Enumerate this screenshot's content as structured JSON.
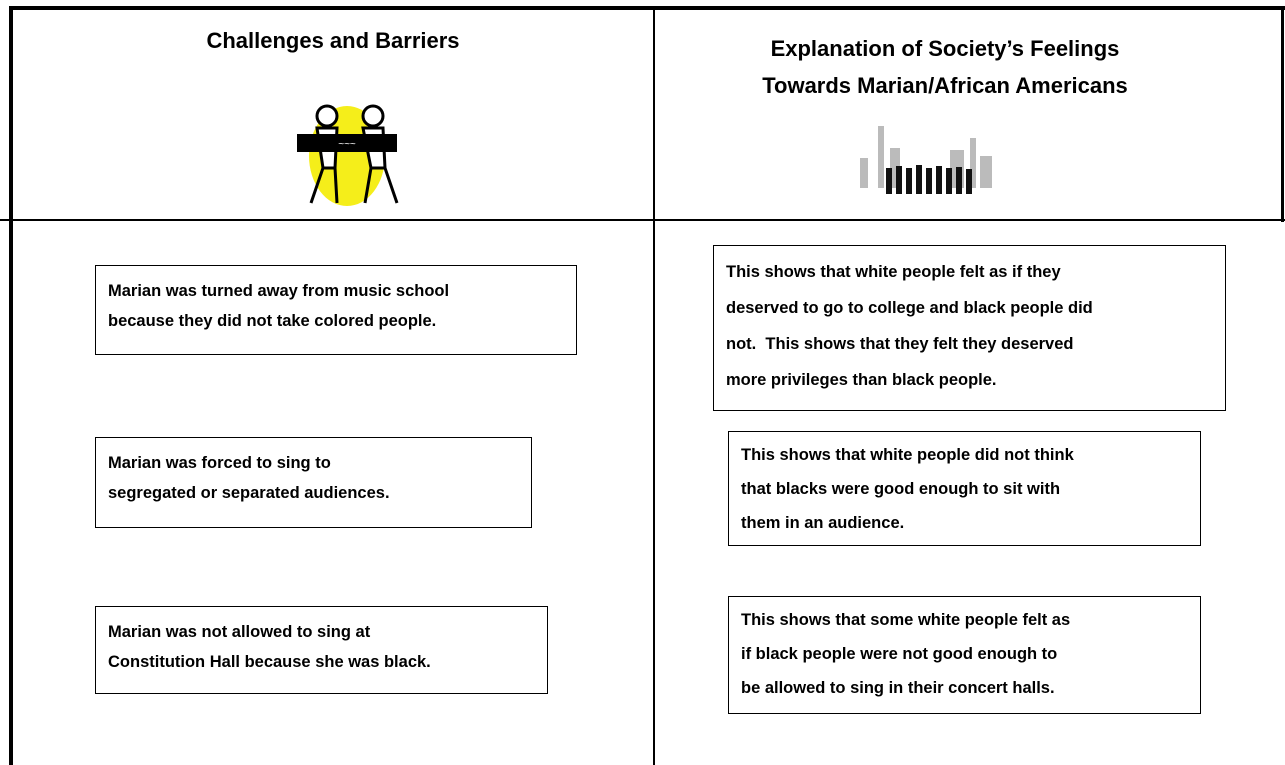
{
  "header": {
    "left_title": "Challenges and Barriers",
    "right_title": [
      "Explanation of Society’s Feelings",
      "Towards Marian/African Americans"
    ]
  },
  "challenges": [
    [
      "Marian was turned away from music school",
      "because they did not take colored people."
    ],
    [
      "Marian was forced to sing to",
      "segregated or separated audiences."
    ],
    [
      "Marian was not allowed to sing at",
      "Constitution Hall because she was black."
    ]
  ],
  "explanations": [
    [
      "This shows that white people felt as if they",
      "deserved to go to college and black people did",
      "not.  This shows that they felt they deserved",
      "more privileges than black people."
    ],
    [
      "This shows that white people did not think",
      "that blacks were good enough to sit with",
      "them in an audience."
    ],
    [
      "This shows that some white people felt as",
      "if black people were not good enough to",
      "be allowed to sing in their concert halls."
    ]
  ]
}
